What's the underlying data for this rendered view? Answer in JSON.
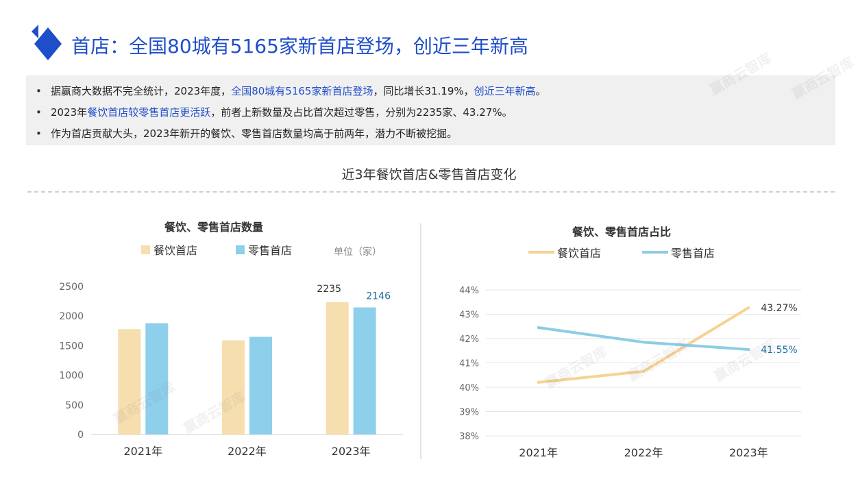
{
  "header": {
    "title": "首店：全国80城有5165家新首店登场，创近三年新高"
  },
  "summary": [
    {
      "parts": [
        {
          "text": "据赢商大数据不完全统计，2023年度，",
          "hl": false
        },
        {
          "text": "全国80城有5165家新首店登场",
          "hl": true
        },
        {
          "text": "，同比增长31.19%，",
          "hl": false
        },
        {
          "text": "创近三年新高",
          "hl": true
        },
        {
          "text": "。",
          "hl": false
        }
      ]
    },
    {
      "parts": [
        {
          "text": "2023年",
          "hl": false
        },
        {
          "text": "餐饮首店较零售首店更活跃",
          "hl": true
        },
        {
          "text": "，前者上新数量及占比首次超过零售，分别为2235家、43.27%。",
          "hl": false
        }
      ]
    },
    {
      "parts": [
        {
          "text": "作为首店贡献大头，2023年新开的餐饮、零售首店数量均高于前两年，潜力不断被挖掘。",
          "hl": false
        }
      ]
    }
  ],
  "section_title": "近3年餐饮首店&零售首店变化",
  "watermark": "赢商云智库",
  "colors": {
    "brand": "#1f4ec9",
    "food": "#f7deaf",
    "retail": "#8ecfec",
    "food_line": "#f7d290",
    "retail_line": "#8ecce6",
    "label_blue": "#1b6ea0"
  },
  "chart_data": [
    {
      "type": "bar",
      "title": "餐饮、零售首店数量",
      "unit": "单位（家）",
      "categories": [
        "2021年",
        "2022年",
        "2023年"
      ],
      "series": [
        {
          "name": "餐饮首店",
          "values": [
            1780,
            1590,
            2235
          ]
        },
        {
          "name": "零售首店",
          "values": [
            1880,
            1650,
            2146
          ]
        }
      ],
      "data_labels": {
        "2023年": [
          "2235",
          "2146"
        ]
      },
      "ylim": [
        0,
        2500
      ],
      "yticks": [
        "0",
        "500",
        "1000",
        "1500",
        "2000",
        "2500"
      ],
      "grid": false,
      "legend": "top"
    },
    {
      "type": "line",
      "title": "餐饮、零售首店占比",
      "categories": [
        "2021年",
        "2022年",
        "2023年"
      ],
      "series": [
        {
          "name": "餐饮首店",
          "values": [
            40.2,
            40.65,
            43.27
          ]
        },
        {
          "name": "零售首店",
          "values": [
            42.45,
            41.85,
            41.55
          ]
        }
      ],
      "data_labels": [
        "43.27%",
        "41.55%"
      ],
      "ylim": [
        38,
        44
      ],
      "yticks": [
        "38%",
        "39%",
        "40%",
        "41%",
        "42%",
        "43%",
        "44%"
      ],
      "grid": true,
      "legend": "top"
    }
  ]
}
